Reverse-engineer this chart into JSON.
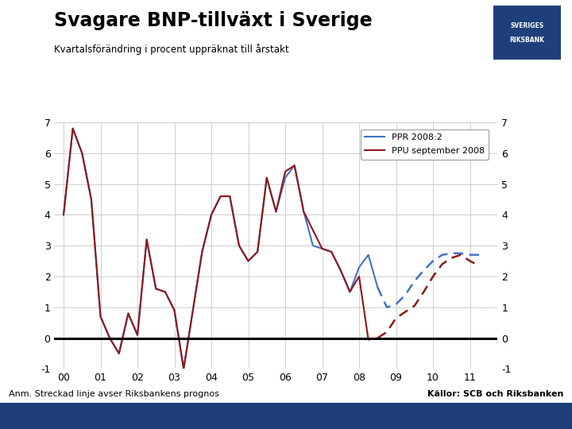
{
  "title": "Svagare BNP-tillväxt i Sverige",
  "subtitle": "Kvartalsförändring i procent uppräknat till årstakt",
  "footnote_left": "Anm. Streckad linje avser Riksbankens prognos",
  "footnote_right": "Källor: SCB och Riksbanken",
  "legend_ppr": "PPR 2008:2",
  "legend_ppu": "PPU september 2008",
  "yticks": [
    -1,
    0,
    1,
    2,
    3,
    4,
    5,
    6,
    7
  ],
  "xtick_labels": [
    "00",
    "01",
    "02",
    "03",
    "04",
    "05",
    "06",
    "07",
    "08",
    "09",
    "10",
    "11"
  ],
  "background_color": "#ffffff",
  "footer_bar_color": "#1e3f7a",
  "ppr_color": "#4472c4",
  "ppu_color": "#8b1a1a",
  "x_ppr": [
    2000.0,
    2000.25,
    2000.5,
    2000.75,
    2001.0,
    2001.25,
    2001.5,
    2001.75,
    2002.0,
    2002.25,
    2002.5,
    2002.75,
    2003.0,
    2003.25,
    2003.5,
    2003.75,
    2004.0,
    2004.25,
    2004.5,
    2004.75,
    2005.0,
    2005.25,
    2005.5,
    2005.75,
    2006.0,
    2006.25,
    2006.5,
    2006.75,
    2007.0,
    2007.25,
    2007.5,
    2007.75,
    2008.0,
    2008.25,
    2008.5
  ],
  "y_ppr": [
    4.0,
    6.8,
    6.0,
    4.5,
    0.7,
    0.0,
    -0.5,
    0.8,
    0.1,
    3.2,
    1.6,
    1.5,
    0.9,
    -1.0,
    0.9,
    2.8,
    4.0,
    4.6,
    4.6,
    3.0,
    2.5,
    2.8,
    5.2,
    4.1,
    5.2,
    5.6,
    4.1,
    3.0,
    2.9,
    2.8,
    2.2,
    1.5,
    2.3,
    2.7,
    1.65
  ],
  "x_ppr_forecast": [
    2008.5,
    2008.75,
    2009.0,
    2009.25,
    2009.5,
    2009.75,
    2010.0,
    2010.25,
    2010.5,
    2010.75,
    2011.0,
    2011.25
  ],
  "y_ppr_forecast": [
    1.65,
    1.0,
    1.1,
    1.4,
    1.85,
    2.2,
    2.5,
    2.7,
    2.75,
    2.75,
    2.7,
    2.7
  ],
  "x_ppu": [
    2000.0,
    2000.25,
    2000.5,
    2000.75,
    2001.0,
    2001.25,
    2001.5,
    2001.75,
    2002.0,
    2002.25,
    2002.5,
    2002.75,
    2003.0,
    2003.25,
    2003.5,
    2003.75,
    2004.0,
    2004.25,
    2004.5,
    2004.75,
    2005.0,
    2005.25,
    2005.5,
    2005.75,
    2006.0,
    2006.25,
    2006.5,
    2006.75,
    2007.0,
    2007.25,
    2007.5,
    2007.75,
    2008.0,
    2008.25,
    2008.5
  ],
  "y_ppu": [
    4.0,
    6.8,
    6.0,
    4.5,
    0.7,
    0.0,
    -0.5,
    0.8,
    0.1,
    3.2,
    1.6,
    1.5,
    0.9,
    -1.0,
    0.9,
    2.8,
    4.0,
    4.6,
    4.6,
    3.0,
    2.5,
    2.8,
    5.2,
    4.1,
    5.4,
    5.6,
    4.1,
    3.5,
    2.9,
    2.8,
    2.2,
    1.5,
    2.0,
    -0.05,
    0.0
  ],
  "x_ppu_forecast": [
    2008.5,
    2008.75,
    2009.0,
    2009.25,
    2009.5,
    2009.75,
    2010.0,
    2010.25,
    2010.5,
    2010.75,
    2011.0,
    2011.25
  ],
  "y_ppu_forecast": [
    0.0,
    0.2,
    0.65,
    0.85,
    1.05,
    1.5,
    2.0,
    2.4,
    2.6,
    2.7,
    2.5,
    2.35
  ]
}
